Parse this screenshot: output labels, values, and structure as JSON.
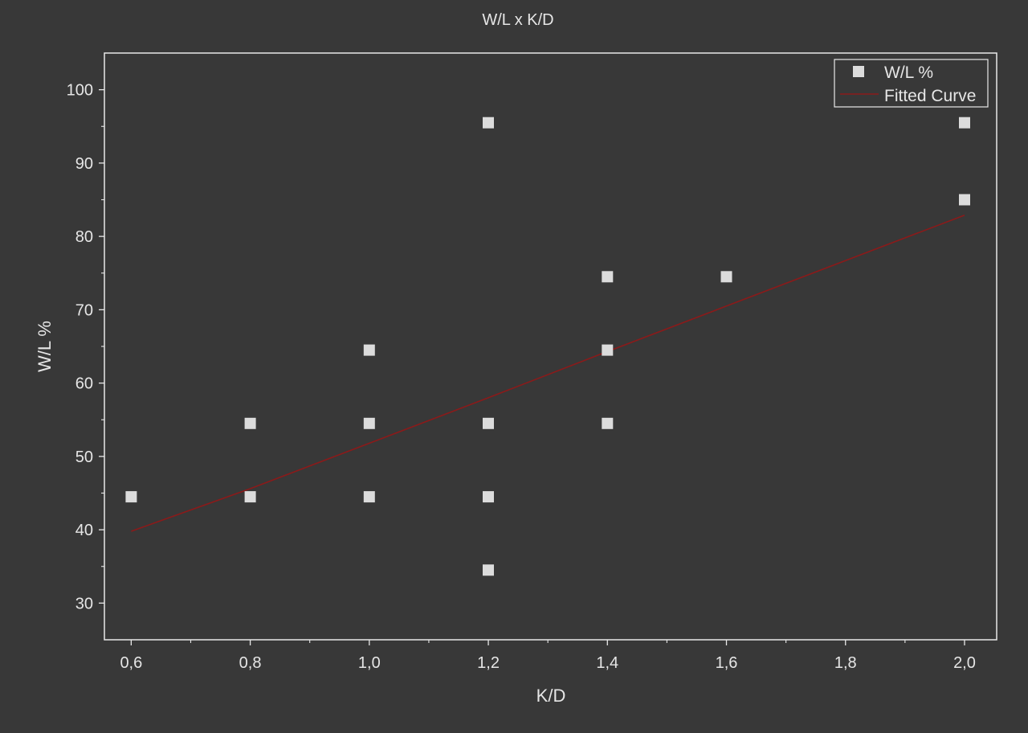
{
  "chart_data": {
    "type": "scatter",
    "title": "W/L x K/D",
    "xlabel": "K/D",
    "ylabel": "W/L %",
    "xlim": [
      0.555,
      2.054
    ],
    "ylim": [
      25,
      105
    ],
    "x_ticks": [
      {
        "value": 0.6,
        "label": "0,6"
      },
      {
        "value": 0.8,
        "label": "0,8"
      },
      {
        "value": 1.0,
        "label": "1,0"
      },
      {
        "value": 1.2,
        "label": "1,2"
      },
      {
        "value": 1.4,
        "label": "1,4"
      },
      {
        "value": 1.6,
        "label": "1,6"
      },
      {
        "value": 1.8,
        "label": "1,8"
      },
      {
        "value": 2.0,
        "label": "2,0"
      }
    ],
    "y_ticks": [
      {
        "value": 30,
        "label": "30"
      },
      {
        "value": 40,
        "label": "40"
      },
      {
        "value": 50,
        "label": "50"
      },
      {
        "value": 60,
        "label": "60"
      },
      {
        "value": 70,
        "label": "70"
      },
      {
        "value": 80,
        "label": "80"
      },
      {
        "value": 90,
        "label": "90"
      },
      {
        "value": 100,
        "label": "100"
      }
    ],
    "grid": false,
    "legend_position": "top-right",
    "series": [
      {
        "name": "W/L %",
        "kind": "scatter",
        "marker": "square",
        "color": "#dcdcdc",
        "points": [
          {
            "x": 0.6,
            "y": 44.5
          },
          {
            "x": 0.8,
            "y": 54.5
          },
          {
            "x": 0.8,
            "y": 44.5
          },
          {
            "x": 1.0,
            "y": 64.5
          },
          {
            "x": 1.0,
            "y": 54.5
          },
          {
            "x": 1.0,
            "y": 44.5
          },
          {
            "x": 1.2,
            "y": 95.5
          },
          {
            "x": 1.2,
            "y": 54.5
          },
          {
            "x": 1.2,
            "y": 44.5
          },
          {
            "x": 1.2,
            "y": 34.5
          },
          {
            "x": 1.4,
            "y": 74.5
          },
          {
            "x": 1.4,
            "y": 64.5
          },
          {
            "x": 1.4,
            "y": 54.5
          },
          {
            "x": 1.6,
            "y": 74.5
          },
          {
            "x": 2.0,
            "y": 95.5
          },
          {
            "x": 2.0,
            "y": 85.0
          }
        ]
      },
      {
        "name": "Fitted Curve",
        "kind": "line",
        "color": "#8b1a1a",
        "points": [
          {
            "x": 0.6,
            "y": 39.8
          },
          {
            "x": 0.8,
            "y": 45.6
          },
          {
            "x": 1.0,
            "y": 51.8
          },
          {
            "x": 1.2,
            "y": 58.0
          },
          {
            "x": 1.4,
            "y": 64.3
          },
          {
            "x": 1.6,
            "y": 70.5
          },
          {
            "x": 1.8,
            "y": 76.7
          },
          {
            "x": 2.0,
            "y": 82.9
          }
        ]
      }
    ]
  },
  "colors": {
    "background": "#383838",
    "axis": "#e8e8e8",
    "text": "#e6e6e6"
  }
}
